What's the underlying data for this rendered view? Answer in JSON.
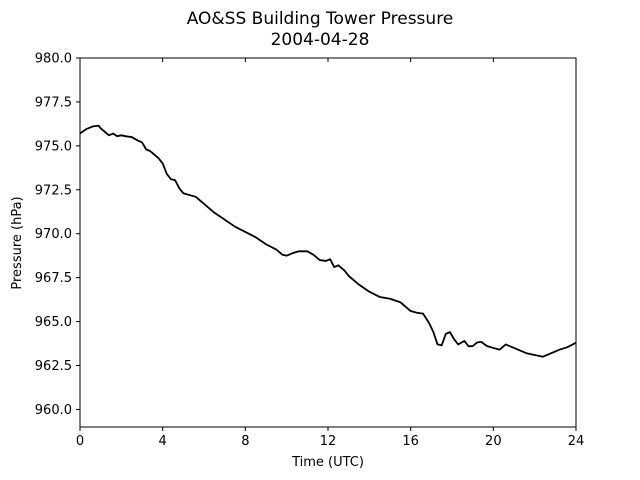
{
  "chart_data": {
    "type": "line",
    "title": "AO&SS Building Tower Pressure",
    "subtitle": "2004-04-28",
    "xlabel": "Time (UTC)",
    "ylabel": "Pressure (hPa)",
    "xlim": [
      0,
      24
    ],
    "ylim": [
      959.0,
      980.0
    ],
    "xticks": [
      0,
      4,
      8,
      12,
      16,
      20,
      24
    ],
    "xtick_labels": [
      "0",
      "4",
      "8",
      "12",
      "16",
      "20",
      "24"
    ],
    "yticks": [
      960.0,
      962.5,
      965.0,
      967.5,
      970.0,
      972.5,
      975.0,
      977.5,
      980.0
    ],
    "ytick_labels": [
      "960.0",
      "962.5",
      "965.0",
      "967.5",
      "970.0",
      "972.5",
      "975.0",
      "977.5",
      "980.0"
    ],
    "grid": false,
    "line_color": "#000000",
    "series": [
      {
        "x": [
          0,
          0.3,
          0.6,
          0.9,
          1.0,
          1.2,
          1.4,
          1.6,
          1.8,
          2.0,
          2.2,
          2.5,
          2.8,
          3.0,
          3.2,
          3.4,
          3.6,
          3.8,
          4.0,
          4.2,
          4.4,
          4.6,
          4.8,
          5.0,
          5.3,
          5.6,
          6.0,
          6.5,
          7.0,
          7.5,
          8.0,
          8.5,
          9.0,
          9.5,
          9.8,
          10.0,
          10.3,
          10.6,
          11.0,
          11.3,
          11.6,
          11.9,
          12.1,
          12.3,
          12.5,
          12.8,
          13.0,
          13.5,
          14.0,
          14.5,
          15.0,
          15.5,
          15.8,
          16.0,
          16.3,
          16.6,
          16.9,
          17.1,
          17.3,
          17.5,
          17.7,
          17.9,
          18.1,
          18.3,
          18.6,
          18.8,
          19.0,
          19.2,
          19.4,
          19.7,
          20.0,
          20.3,
          20.6,
          20.8,
          21.0,
          21.3,
          21.6,
          22.0,
          22.4,
          22.8,
          23.2,
          23.6,
          24.0
        ],
        "y": [
          975.7,
          975.95,
          976.1,
          976.15,
          976.0,
          975.8,
          975.6,
          975.7,
          975.55,
          975.6,
          975.55,
          975.5,
          975.3,
          975.2,
          974.8,
          974.7,
          974.5,
          974.3,
          974.0,
          973.4,
          973.1,
          973.05,
          972.6,
          972.3,
          972.2,
          972.1,
          971.7,
          971.2,
          970.8,
          970.4,
          970.1,
          969.8,
          969.4,
          969.1,
          968.8,
          968.75,
          968.9,
          969.0,
          969.0,
          968.8,
          968.5,
          968.45,
          968.55,
          968.1,
          968.2,
          967.9,
          967.6,
          967.1,
          966.7,
          966.4,
          966.3,
          966.1,
          965.8,
          965.6,
          965.5,
          965.45,
          964.9,
          964.4,
          963.7,
          963.65,
          964.3,
          964.4,
          964.0,
          963.7,
          963.9,
          963.6,
          963.6,
          963.8,
          963.85,
          963.6,
          963.5,
          963.4,
          963.7,
          963.6,
          963.5,
          963.35,
          963.2,
          963.1,
          963.0,
          963.2,
          963.4,
          963.55,
          963.8
        ]
      }
    ]
  }
}
